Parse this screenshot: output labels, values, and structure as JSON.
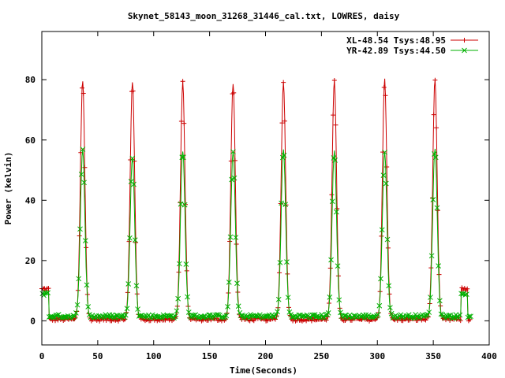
{
  "chart_data": {
    "type": "line",
    "title": "Skynet_58143_moon_31268_31446_cal.txt, LOWRES, daisy",
    "xlabel": "Time(Seconds)",
    "ylabel": "Power (kelvin)",
    "xlim": [
      0,
      400
    ],
    "ylim": [
      -8,
      96
    ],
    "xticks": [
      0,
      50,
      100,
      150,
      200,
      250,
      300,
      350,
      400
    ],
    "yticks": [
      0,
      20,
      40,
      60,
      80
    ],
    "grid": false,
    "legend_position": "top-right",
    "series": [
      {
        "name": "XL-48.54 Tsys:48.95",
        "color": "#cc0000",
        "marker": "plus",
        "baseline": 0.5,
        "cal_level": 10.5,
        "cal_intervals": [
          [
            0,
            6
          ],
          [
            375,
            381
          ]
        ],
        "peaks": [
          {
            "x": 36.5,
            "peak": 80
          },
          {
            "x": 81,
            "peak": 79.5
          },
          {
            "x": 126,
            "peak": 79
          },
          {
            "x": 171,
            "peak": 79
          },
          {
            "x": 216,
            "peak": 79
          },
          {
            "x": 261.5,
            "peak": 79.5
          },
          {
            "x": 306.5,
            "peak": 80
          },
          {
            "x": 351.5,
            "peak": 79.5
          }
        ]
      },
      {
        "name": "YR-42.89 Tsys:44.50",
        "color": "#00b000",
        "marker": "cross",
        "baseline": 1.5,
        "cal_level": 9,
        "cal_intervals": [
          [
            0,
            6
          ],
          [
            375,
            381
          ]
        ],
        "peaks": [
          {
            "x": 36.5,
            "peak": 57
          },
          {
            "x": 81,
            "peak": 54.5
          },
          {
            "x": 126,
            "peak": 56.5
          },
          {
            "x": 171,
            "peak": 56
          },
          {
            "x": 216,
            "peak": 57
          },
          {
            "x": 261.5,
            "peak": 56
          },
          {
            "x": 306.5,
            "peak": 56.5
          },
          {
            "x": 351.5,
            "peak": 57.5
          }
        ]
      }
    ]
  }
}
